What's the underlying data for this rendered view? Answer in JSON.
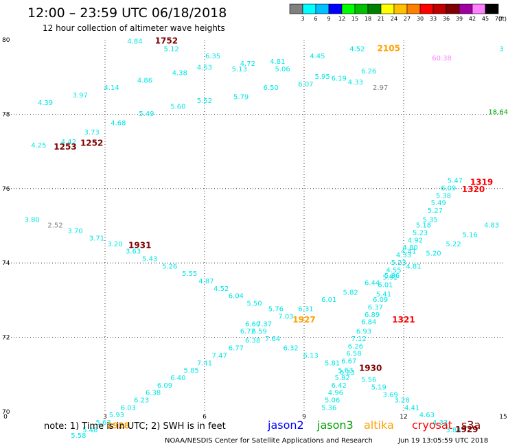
{
  "header": {
    "title": "12:00  –  23:59 UTC 06/18/2018",
    "subtitle": "12 hour collection of altimeter wave heights"
  },
  "scale": {
    "labels": [
      "3",
      "6",
      "9",
      "12",
      "15",
      "18",
      "21",
      "24",
      "27",
      "30",
      "33",
      "36",
      "39",
      "42",
      "45",
      "70",
      "(ft)"
    ],
    "colors": [
      "#808080",
      "#00ffff",
      "#00c0ff",
      "#0000ff",
      "#00ff00",
      "#00c000",
      "#008000",
      "#ffff00",
      "#ffc000",
      "#ff8000",
      "#ff0000",
      "#c00000",
      "#800000",
      "#a000a0",
      "#ff80ff",
      "#000000"
    ]
  },
  "notes": {
    "note": "note:  1) Time is in UTC;  2) SWH is in feet",
    "missions": [
      {
        "name": "jason2",
        "color": "#0000ff"
      },
      {
        "name": "jason3",
        "color": "#00a000"
      },
      {
        "name": "altika",
        "color": "#ffa000"
      },
      {
        "name": "cryosat",
        "color": "#ff0000"
      },
      {
        "name": "s3a",
        "color": "#800000"
      }
    ],
    "credit": "NOAA/NESDIS Center for Satellite Applications and Research",
    "timestamp": "Jun 19 13:05:59 UTC 2018"
  },
  "chart_data": {
    "type": "scatter",
    "title": "12:00  –  23:59 UTC 06/18/2018",
    "subtitle": "12 hour collection of altimeter wave heights",
    "units": "ft",
    "grid": true,
    "x_ticks": [
      "0",
      "3",
      "6",
      "9",
      "12",
      "15"
    ],
    "y_ticks": [
      "70",
      "72",
      "74",
      "76",
      "78",
      "80"
    ],
    "xlim": [
      0,
      15
    ],
    "ylim": [
      70,
      80
    ],
    "colors": {
      "cyan": "#00e5e5",
      "gray": "#808080",
      "green": "#00a000",
      "pink": "#ff80ff",
      "cryosat": "#ff0000",
      "s3a": "#800000",
      "altika": "#ffa000"
    },
    "points": [
      {
        "x": 3.9,
        "y": 79.9,
        "v": "4.84",
        "c": "cyan"
      },
      {
        "x": 5.0,
        "y": 79.7,
        "v": "5.12",
        "c": "cyan"
      },
      {
        "x": 6.25,
        "y": 79.5,
        "v": "6.35",
        "c": "cyan"
      },
      {
        "x": 7.3,
        "y": 79.3,
        "v": "4.72",
        "c": "cyan"
      },
      {
        "x": 7.05,
        "y": 79.15,
        "v": "5.13",
        "c": "cyan"
      },
      {
        "x": 8.2,
        "y": 79.35,
        "v": "4.81",
        "c": "cyan"
      },
      {
        "x": 8.35,
        "y": 79.15,
        "v": "5.06",
        "c": "cyan"
      },
      {
        "x": 9.4,
        "y": 79.5,
        "v": "4.45",
        "c": "cyan"
      },
      {
        "x": 10.6,
        "y": 79.7,
        "v": "4.52",
        "c": "cyan"
      },
      {
        "x": 10.95,
        "y": 79.1,
        "v": "6.26",
        "c": "cyan"
      },
      {
        "x": 9.55,
        "y": 78.95,
        "v": "5.95",
        "c": "cyan"
      },
      {
        "x": 9.05,
        "y": 78.75,
        "v": "6.07",
        "c": "cyan"
      },
      {
        "x": 10.05,
        "y": 78.9,
        "v": "6.19",
        "c": "cyan"
      },
      {
        "x": 10.55,
        "y": 78.8,
        "v": "4.33",
        "c": "cyan"
      },
      {
        "x": 8.0,
        "y": 78.65,
        "v": "6.50",
        "c": "cyan"
      },
      {
        "x": 7.1,
        "y": 78.4,
        "v": "5.79",
        "c": "cyan"
      },
      {
        "x": 6.0,
        "y": 78.3,
        "v": "5.52",
        "c": "cyan"
      },
      {
        "x": 5.2,
        "y": 78.15,
        "v": "5.60",
        "c": "cyan"
      },
      {
        "x": 4.25,
        "y": 77.95,
        "v": "5.49",
        "c": "cyan"
      },
      {
        "x": 3.4,
        "y": 77.7,
        "v": "4.68",
        "c": "cyan"
      },
      {
        "x": 2.6,
        "y": 77.45,
        "v": "3.73",
        "c": "cyan"
      },
      {
        "x": 1.9,
        "y": 77.2,
        "v": "4.42",
        "c": "cyan"
      },
      {
        "x": 1.0,
        "y": 77.1,
        "v": "4.25",
        "c": "cyan"
      },
      {
        "x": 1.2,
        "y": 78.25,
        "v": "4.39",
        "c": "cyan"
      },
      {
        "x": 2.25,
        "y": 78.45,
        "v": "3.97",
        "c": "cyan"
      },
      {
        "x": 3.2,
        "y": 78.65,
        "v": "4.14",
        "c": "cyan"
      },
      {
        "x": 4.2,
        "y": 78.85,
        "v": "4.86",
        "c": "cyan"
      },
      {
        "x": 5.25,
        "y": 79.05,
        "v": "4.38",
        "c": "cyan"
      },
      {
        "x": 6.0,
        "y": 79.2,
        "v": "4.53",
        "c": "cyan"
      },
      {
        "x": 11.3,
        "y": 78.65,
        "v": "2.97",
        "c": "gray"
      },
      {
        "x": 13.15,
        "y": 79.45,
        "v": "60.38",
        "c": "pink"
      },
      {
        "x": 14.95,
        "y": 79.7,
        "v": "3",
        "c": "cyan"
      },
      {
        "x": 14.85,
        "y": 78.0,
        "v": "18.64",
        "c": "green"
      },
      {
        "x": 13.55,
        "y": 76.15,
        "v": "5.47",
        "c": "cyan"
      },
      {
        "x": 13.35,
        "y": 75.95,
        "v": "6.09",
        "c": "cyan"
      },
      {
        "x": 13.2,
        "y": 75.75,
        "v": "5.38",
        "c": "cyan"
      },
      {
        "x": 13.05,
        "y": 75.55,
        "v": "5.49",
        "c": "cyan"
      },
      {
        "x": 12.95,
        "y": 75.35,
        "v": "5.27",
        "c": "cyan"
      },
      {
        "x": 12.8,
        "y": 75.1,
        "v": "5.35",
        "c": "cyan"
      },
      {
        "x": 12.6,
        "y": 74.95,
        "v": "5.18",
        "c": "cyan"
      },
      {
        "x": 12.5,
        "y": 74.75,
        "v": "5.23",
        "c": "cyan"
      },
      {
        "x": 12.35,
        "y": 74.55,
        "v": "4.92",
        "c": "cyan"
      },
      {
        "x": 12.2,
        "y": 74.35,
        "v": "4.80",
        "c": "cyan"
      },
      {
        "x": 12.15,
        "y": 74.25,
        "v": "4.41",
        "c": "cyan"
      },
      {
        "x": 12.0,
        "y": 74.15,
        "v": "4.33",
        "c": "cyan"
      },
      {
        "x": 11.85,
        "y": 73.95,
        "v": "5.23",
        "c": "cyan"
      },
      {
        "x": 11.7,
        "y": 73.75,
        "v": "4.55",
        "c": "cyan"
      },
      {
        "x": 11.6,
        "y": 73.55,
        "v": "5.92",
        "c": "cyan"
      },
      {
        "x": 11.45,
        "y": 73.35,
        "v": "6.01",
        "c": "cyan"
      },
      {
        "x": 11.4,
        "y": 73.1,
        "v": "5.41",
        "c": "cyan"
      },
      {
        "x": 11.3,
        "y": 72.95,
        "v": "6.09",
        "c": "cyan"
      },
      {
        "x": 11.15,
        "y": 72.75,
        "v": "6.37",
        "c": "cyan"
      },
      {
        "x": 11.05,
        "y": 72.55,
        "v": "6.89",
        "c": "cyan"
      },
      {
        "x": 10.95,
        "y": 72.35,
        "v": "6.84",
        "c": "cyan"
      },
      {
        "x": 10.8,
        "y": 72.1,
        "v": "6.93",
        "c": "cyan"
      },
      {
        "x": 10.65,
        "y": 71.9,
        "v": "7.12",
        "c": "cyan"
      },
      {
        "x": 10.55,
        "y": 71.7,
        "v": "6.26",
        "c": "cyan"
      },
      {
        "x": 10.5,
        "y": 71.5,
        "v": "6.58",
        "c": "cyan"
      },
      {
        "x": 10.35,
        "y": 71.3,
        "v": "6.67",
        "c": "cyan"
      },
      {
        "x": 10.25,
        "y": 71.05,
        "v": "5.63",
        "c": "cyan"
      },
      {
        "x": 10.15,
        "y": 70.85,
        "v": "5.82",
        "c": "cyan"
      },
      {
        "x": 10.05,
        "y": 70.65,
        "v": "6.42",
        "c": "cyan"
      },
      {
        "x": 9.95,
        "y": 70.45,
        "v": "4.96",
        "c": "cyan"
      },
      {
        "x": 9.85,
        "y": 70.25,
        "v": "5.06",
        "c": "cyan"
      },
      {
        "x": 9.75,
        "y": 70.05,
        "v": "5.36",
        "c": "cyan"
      },
      {
        "x": 14.65,
        "y": 74.95,
        "v": "4.83",
        "c": "cyan"
      },
      {
        "x": 14.0,
        "y": 74.7,
        "v": "5.16",
        "c": "cyan"
      },
      {
        "x": 13.5,
        "y": 74.45,
        "v": "5.22",
        "c": "cyan"
      },
      {
        "x": 12.9,
        "y": 74.2,
        "v": "5.20",
        "c": "cyan"
      },
      {
        "x": 12.3,
        "y": 73.85,
        "v": "4.81",
        "c": "cyan"
      },
      {
        "x": 11.65,
        "y": 73.6,
        "v": "5.86",
        "c": "cyan"
      },
      {
        "x": 11.05,
        "y": 73.4,
        "v": "6.44",
        "c": "cyan"
      },
      {
        "x": 10.4,
        "y": 73.15,
        "v": "5.82",
        "c": "cyan"
      },
      {
        "x": 9.75,
        "y": 72.95,
        "v": "6.01",
        "c": "cyan"
      },
      {
        "x": 9.05,
        "y": 72.7,
        "v": "6.31",
        "c": "cyan"
      },
      {
        "x": 8.45,
        "y": 72.5,
        "v": "7.03",
        "c": "cyan"
      },
      {
        "x": 7.8,
        "y": 72.3,
        "v": "7.37",
        "c": "cyan"
      },
      {
        "x": 7.45,
        "y": 72.3,
        "v": "6.60",
        "c": "cyan"
      },
      {
        "x": 7.65,
        "y": 72.1,
        "v": "6.59",
        "c": "cyan"
      },
      {
        "x": 7.3,
        "y": 72.1,
        "v": "6.72",
        "c": "cyan"
      },
      {
        "x": 8.05,
        "y": 71.9,
        "v": "7.64",
        "c": "cyan"
      },
      {
        "x": 8.6,
        "y": 71.65,
        "v": "6.32",
        "c": "cyan"
      },
      {
        "x": 9.2,
        "y": 71.45,
        "v": "6.13",
        "c": "cyan"
      },
      {
        "x": 9.85,
        "y": 71.25,
        "v": "5.81",
        "c": "cyan"
      },
      {
        "x": 10.3,
        "y": 71.0,
        "v": "6.23",
        "c": "cyan"
      },
      {
        "x": 10.95,
        "y": 70.8,
        "v": "5.56",
        "c": "cyan"
      },
      {
        "x": 11.25,
        "y": 70.6,
        "v": "5.19",
        "c": "cyan"
      },
      {
        "x": 11.6,
        "y": 70.4,
        "v": "3.69",
        "c": "cyan"
      },
      {
        "x": 11.95,
        "y": 70.25,
        "v": "3.28",
        "c": "cyan"
      },
      {
        "x": 12.25,
        "y": 70.05,
        "v": "4.41",
        "c": "cyan"
      },
      {
        "x": 12.7,
        "y": 69.85,
        "v": "4.63",
        "c": "cyan"
      },
      {
        "x": 13.1,
        "y": 69.65,
        "v": "4.33",
        "c": "cyan"
      },
      {
        "x": 13.5,
        "y": 69.45,
        "v": "3.84",
        "c": "cyan"
      },
      {
        "x": 0.8,
        "y": 75.1,
        "v": "3.80",
        "c": "cyan"
      },
      {
        "x": 1.5,
        "y": 74.95,
        "v": "2.52",
        "c": "gray"
      },
      {
        "x": 2.1,
        "y": 74.8,
        "v": "3.70",
        "c": "cyan"
      },
      {
        "x": 2.75,
        "y": 74.6,
        "v": "3.71",
        "c": "cyan"
      },
      {
        "x": 3.3,
        "y": 74.45,
        "v": "3.20",
        "c": "cyan"
      },
      {
        "x": 3.85,
        "y": 74.25,
        "v": "3.63",
        "c": "cyan"
      },
      {
        "x": 4.35,
        "y": 74.05,
        "v": "5.43",
        "c": "cyan"
      },
      {
        "x": 4.95,
        "y": 73.85,
        "v": "5.26",
        "c": "cyan"
      },
      {
        "x": 5.55,
        "y": 73.65,
        "v": "5.55",
        "c": "cyan"
      },
      {
        "x": 6.05,
        "y": 73.45,
        "v": "4.87",
        "c": "cyan"
      },
      {
        "x": 6.5,
        "y": 73.25,
        "v": "4.52",
        "c": "cyan"
      },
      {
        "x": 6.95,
        "y": 73.05,
        "v": "6.04",
        "c": "cyan"
      },
      {
        "x": 7.5,
        "y": 72.85,
        "v": "5.50",
        "c": "cyan"
      },
      {
        "x": 8.15,
        "y": 72.7,
        "v": "5.76",
        "c": "cyan"
      },
      {
        "x": 7.45,
        "y": 71.85,
        "v": "6.38",
        "c": "cyan"
      },
      {
        "x": 6.95,
        "y": 71.65,
        "v": "6.77",
        "c": "cyan"
      },
      {
        "x": 6.45,
        "y": 71.45,
        "v": "7.47",
        "c": "cyan"
      },
      {
        "x": 6.0,
        "y": 71.25,
        "v": "7.41",
        "c": "cyan"
      },
      {
        "x": 5.6,
        "y": 71.05,
        "v": "5.85",
        "c": "cyan"
      },
      {
        "x": 5.2,
        "y": 70.85,
        "v": "6.40",
        "c": "cyan"
      },
      {
        "x": 4.8,
        "y": 70.65,
        "v": "6.09",
        "c": "cyan"
      },
      {
        "x": 4.45,
        "y": 70.45,
        "v": "6.38",
        "c": "cyan"
      },
      {
        "x": 4.1,
        "y": 70.25,
        "v": "6.23",
        "c": "cyan"
      },
      {
        "x": 3.7,
        "y": 70.05,
        "v": "6.03",
        "c": "cyan"
      },
      {
        "x": 3.35,
        "y": 69.85,
        "v": "5.93",
        "c": "cyan"
      },
      {
        "x": 2.95,
        "y": 69.65,
        "v": "5.62",
        "c": "cyan"
      },
      {
        "x": 2.55,
        "y": 69.45,
        "v": "5.48",
        "c": "cyan"
      },
      {
        "x": 2.2,
        "y": 69.3,
        "v": "5.58",
        "c": "cyan"
      }
    ],
    "passes": [
      {
        "x": 4.85,
        "y": 79.9,
        "label": "1752",
        "c": "s3a"
      },
      {
        "x": 11.55,
        "y": 79.7,
        "label": "2105",
        "c": "altika"
      },
      {
        "x": 2.6,
        "y": 77.15,
        "label": "1252",
        "c": "s3a"
      },
      {
        "x": 1.8,
        "y": 77.05,
        "label": "1253",
        "c": "s3a"
      },
      {
        "x": 14.35,
        "y": 76.1,
        "label": "1319",
        "c": "cryosat"
      },
      {
        "x": 14.1,
        "y": 75.9,
        "label": "1320",
        "c": "cryosat"
      },
      {
        "x": 4.05,
        "y": 74.4,
        "label": "1931",
        "c": "s3a"
      },
      {
        "x": 9.0,
        "y": 72.4,
        "label": "1927",
        "c": "altika"
      },
      {
        "x": 12.0,
        "y": 72.4,
        "label": "1321",
        "c": "cryosat"
      },
      {
        "x": 11.0,
        "y": 71.1,
        "label": "1930",
        "c": "s3a"
      },
      {
        "x": 3.4,
        "y": 69.55,
        "label": "1928",
        "c": "altika"
      },
      {
        "x": 13.9,
        "y": 69.45,
        "label": "1929",
        "c": "s3a"
      }
    ]
  }
}
